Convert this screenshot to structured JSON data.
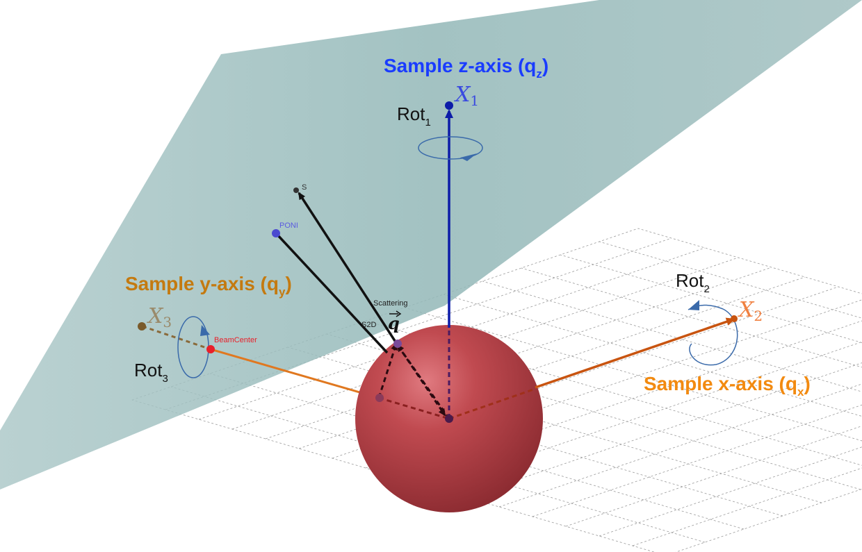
{
  "labels": {
    "z_axis": {
      "main": "Sample z-axis (q",
      "sub": "z",
      "close": ")"
    },
    "y_axis": {
      "main": "Sample y-axis (q",
      "sub": "y",
      "close": ")"
    },
    "x_axis": {
      "main": "Sample x-axis (q",
      "sub": "x",
      "close": ")"
    },
    "x1": {
      "main": "X",
      "sub": "1"
    },
    "x2": {
      "main": "X",
      "sub": "2"
    },
    "x3": {
      "main": "X",
      "sub": "3"
    },
    "rot1": {
      "main": "Rot",
      "sub": "1"
    },
    "rot2": {
      "main": "Rot",
      "sub": "2"
    },
    "rot3": {
      "main": "Rot",
      "sub": "3"
    },
    "s": "S",
    "poni": "PONI",
    "scattering": "Scattering",
    "s2d": "S2D",
    "q_vector": "q",
    "beam_center": "BeamCenter"
  },
  "colors": {
    "z_axis": "#1a3cff",
    "z_arrow": "#0d1ca8",
    "y_axis": "#c47a10",
    "x_axis": "#f28a10",
    "x_arrow": "#c85410",
    "y_arrow": "#e07820",
    "beam_center": "#e8202a",
    "poni": "#5a5ae0",
    "plane": "#93b8b8",
    "sphere": "#b03a40",
    "grid": "#9a9a9a"
  }
}
